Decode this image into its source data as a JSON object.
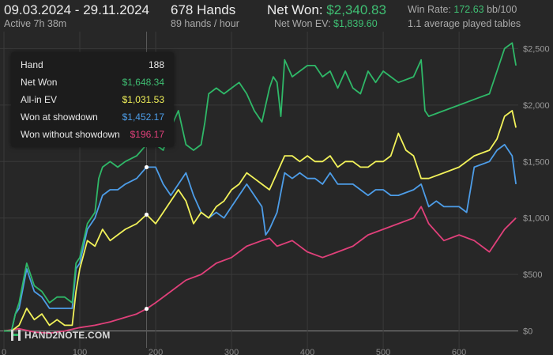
{
  "header": {
    "date_range": "09.03.2024 - 29.11.2024",
    "active": "Active 7h 38m",
    "hands": "678 Hands",
    "hands_rate": "89 hands / hour",
    "net_won_label": "Net Won:",
    "net_won_value": "$2,340.83",
    "net_won_ev_label": "Net Won  EV:",
    "net_won_ev_value": "$1,839.60",
    "win_rate_label": "Win Rate:",
    "win_rate_value": "172.63",
    "win_rate_unit": "bb/100",
    "avg_tables": "1.1 average played tables"
  },
  "tooltip": {
    "hand_label": "Hand",
    "hand_value": "188",
    "rows": [
      {
        "label": "Net Won",
        "value": "$1,648.34",
        "color": "#3fbf73"
      },
      {
        "label": "All-in EV",
        "value": "$1,031.53",
        "color": "#f2f25a"
      },
      {
        "label": "Won at showdown",
        "value": "$1,452.17",
        "color": "#4d9de8"
      },
      {
        "label": "Won without showdown",
        "value": "$196.17",
        "color": "#e0407a"
      }
    ]
  },
  "logo": {
    "text": "HAND2NOTE.COM"
  },
  "colors": {
    "background": "#272727",
    "grid": "#3a3a3a",
    "net_won": "#2fb868",
    "all_in_ev": "#f2f25a",
    "showdown": "#4d9de8",
    "non_showdown": "#e0407a"
  },
  "chart_data": {
    "type": "line",
    "xlim": [
      0,
      678
    ],
    "ylim": [
      -150,
      2650
    ],
    "x_ticks": [
      {
        "value": 0,
        "label": "0"
      },
      {
        "value": 100,
        "label": "100"
      },
      {
        "value": 200,
        "label": "200"
      },
      {
        "value": 300,
        "label": "300"
      },
      {
        "value": 400,
        "label": "400"
      },
      {
        "value": 500,
        "label": "500"
      },
      {
        "value": 600,
        "label": "600"
      }
    ],
    "y_ticks": [
      {
        "value": 0,
        "label": "$0"
      },
      {
        "value": 500,
        "label": "$500"
      },
      {
        "value": 1000,
        "label": "$1,000"
      },
      {
        "value": 1500,
        "label": "$1,500"
      },
      {
        "value": 2000,
        "label": "$2,000"
      },
      {
        "value": 2500,
        "label": "$2,500"
      }
    ],
    "grid": true,
    "marker_x": 188,
    "series": [
      {
        "name": "Net Won",
        "color_key": "net_won",
        "x": [
          0,
          10,
          15,
          20,
          30,
          40,
          50,
          60,
          70,
          80,
          90,
          95,
          100,
          105,
          110,
          120,
          125,
          130,
          140,
          150,
          160,
          175,
          188,
          200,
          210,
          220,
          230,
          240,
          250,
          260,
          265,
          270,
          280,
          290,
          300,
          310,
          320,
          330,
          340,
          350,
          355,
          360,
          365,
          370,
          380,
          390,
          400,
          410,
          420,
          430,
          440,
          450,
          460,
          470,
          480,
          490,
          500,
          510,
          520,
          540,
          550,
          555,
          560,
          580,
          600,
          620,
          640,
          650,
          660,
          670,
          675
        ],
        "y": [
          0,
          0,
          150,
          250,
          600,
          400,
          350,
          250,
          300,
          300,
          250,
          600,
          650,
          800,
          950,
          1050,
          1350,
          1450,
          1500,
          1450,
          1500,
          1550,
          1650,
          1650,
          1600,
          1800,
          1950,
          1650,
          1600,
          1650,
          1850,
          2100,
          2150,
          2100,
          2150,
          2200,
          2100,
          1950,
          1850,
          2150,
          2250,
          2200,
          1900,
          2400,
          2250,
          2300,
          2350,
          2350,
          2250,
          2300,
          2150,
          2300,
          2150,
          2100,
          2300,
          2200,
          2300,
          2250,
          2200,
          2250,
          2400,
          1950,
          1900,
          1950,
          2000,
          2050,
          2100,
          2300,
          2500,
          2550,
          2350
        ],
        "values": [
          0,
          0,
          150,
          250,
          600,
          400,
          350,
          250,
          300,
          300,
          250,
          600,
          650,
          800,
          950,
          1050,
          1350,
          1450,
          1500,
          1450,
          1500,
          1550,
          1650,
          1650,
          1600,
          1800,
          1950,
          1650,
          1600,
          1650,
          1850,
          2100,
          2150,
          2100,
          2150,
          2200,
          2100,
          1950,
          1850,
          2150,
          2250,
          2200,
          1900,
          2400,
          2250,
          2300,
          2350,
          2350,
          2250,
          2300,
          2150,
          2300,
          2150,
          2100,
          2300,
          2200,
          2300,
          2250,
          2200,
          2250,
          2400,
          1950,
          1900,
          1950,
          2000,
          2050,
          2100,
          2300,
          2500,
          2550,
          2350
        ]
      },
      {
        "name": "All-in EV",
        "color_key": "all_in_ev",
        "x": [
          0,
          10,
          20,
          30,
          40,
          50,
          60,
          70,
          80,
          90,
          95,
          100,
          110,
          120,
          130,
          140,
          150,
          160,
          175,
          188,
          200,
          210,
          220,
          230,
          240,
          250,
          260,
          270,
          280,
          290,
          300,
          310,
          320,
          330,
          340,
          350,
          360,
          370,
          380,
          390,
          400,
          410,
          420,
          430,
          440,
          450,
          460,
          470,
          480,
          490,
          500,
          510,
          520,
          530,
          540,
          550,
          560,
          580,
          600,
          620,
          640,
          650,
          660,
          670,
          675
        ],
        "y": [
          0,
          0,
          50,
          200,
          100,
          150,
          50,
          100,
          50,
          50,
          350,
          550,
          800,
          750,
          900,
          800,
          850,
          900,
          950,
          1030,
          950,
          1050,
          1150,
          1250,
          1150,
          950,
          1050,
          1000,
          1100,
          1150,
          1250,
          1300,
          1400,
          1350,
          1300,
          1250,
          1400,
          1550,
          1550,
          1500,
          1550,
          1500,
          1500,
          1550,
          1450,
          1500,
          1500,
          1450,
          1450,
          1500,
          1500,
          1550,
          1750,
          1600,
          1550,
          1350,
          1350,
          1400,
          1450,
          1550,
          1600,
          1700,
          1900,
          1950,
          1800
        ],
        "values": [
          0,
          0,
          50,
          200,
          100,
          150,
          50,
          100,
          50,
          50,
          350,
          550,
          800,
          750,
          900,
          800,
          850,
          900,
          950,
          1030,
          950,
          1050,
          1150,
          1250,
          1150,
          950,
          1050,
          1000,
          1100,
          1150,
          1250,
          1300,
          1400,
          1350,
          1300,
          1250,
          1400,
          1550,
          1550,
          1500,
          1550,
          1500,
          1500,
          1550,
          1450,
          1500,
          1500,
          1450,
          1450,
          1500,
          1500,
          1550,
          1750,
          1600,
          1550,
          1350,
          1350,
          1400,
          1450,
          1550,
          1600,
          1700,
          1900,
          1950,
          1800
        ]
      },
      {
        "name": "Won at showdown",
        "color_key": "showdown",
        "x": [
          0,
          10,
          15,
          20,
          30,
          40,
          50,
          60,
          70,
          80,
          90,
          95,
          100,
          105,
          110,
          120,
          130,
          140,
          150,
          160,
          175,
          188,
          200,
          210,
          220,
          230,
          240,
          250,
          260,
          270,
          280,
          290,
          300,
          310,
          320,
          330,
          340,
          345,
          350,
          360,
          370,
          380,
          390,
          400,
          410,
          420,
          430,
          440,
          450,
          460,
          470,
          480,
          490,
          500,
          510,
          520,
          540,
          550,
          560,
          570,
          580,
          600,
          610,
          620,
          640,
          650,
          660,
          670,
          675
        ],
        "y": [
          0,
          0,
          150,
          200,
          550,
          350,
          300,
          200,
          200,
          200,
          200,
          550,
          600,
          750,
          900,
          1000,
          1200,
          1250,
          1250,
          1300,
          1350,
          1450,
          1450,
          1300,
          1200,
          1300,
          1400,
          1200,
          1050,
          1000,
          1050,
          1000,
          1100,
          1200,
          1300,
          1200,
          1100,
          850,
          900,
          1050,
          1400,
          1350,
          1400,
          1350,
          1350,
          1300,
          1400,
          1300,
          1300,
          1300,
          1250,
          1200,
          1250,
          1250,
          1200,
          1200,
          1250,
          1300,
          1100,
          1150,
          1100,
          1100,
          1050,
          1450,
          1500,
          1600,
          1650,
          1550,
          1300
        ],
        "values": [
          0,
          0,
          150,
          200,
          550,
          350,
          300,
          200,
          200,
          200,
          200,
          550,
          600,
          750,
          900,
          1000,
          1200,
          1250,
          1250,
          1300,
          1350,
          1450,
          1450,
          1300,
          1200,
          1300,
          1400,
          1200,
          1050,
          1000,
          1050,
          1000,
          1100,
          1200,
          1300,
          1200,
          1100,
          850,
          900,
          1050,
          1400,
          1350,
          1400,
          1350,
          1350,
          1300,
          1400,
          1300,
          1300,
          1300,
          1250,
          1200,
          1250,
          1250,
          1200,
          1200,
          1250,
          1300,
          1100,
          1150,
          1100,
          1100,
          1050,
          1450,
          1500,
          1600,
          1650,
          1550,
          1300
        ]
      },
      {
        "name": "Won without showdown",
        "color_key": "non_showdown",
        "x": [
          0,
          20,
          40,
          60,
          80,
          100,
          120,
          140,
          160,
          175,
          188,
          200,
          220,
          240,
          260,
          280,
          300,
          320,
          340,
          350,
          360,
          380,
          400,
          420,
          440,
          460,
          480,
          500,
          520,
          540,
          550,
          560,
          580,
          600,
          620,
          640,
          660,
          675
        ],
        "y": [
          0,
          20,
          -10,
          -20,
          0,
          30,
          50,
          80,
          120,
          150,
          196,
          250,
          350,
          450,
          500,
          600,
          650,
          750,
          800,
          820,
          750,
          800,
          700,
          650,
          700,
          750,
          850,
          900,
          950,
          1000,
          1100,
          950,
          800,
          850,
          800,
          700,
          900,
          1000
        ],
        "values": [
          0,
          20,
          -10,
          -20,
          0,
          30,
          50,
          80,
          120,
          150,
          196,
          250,
          350,
          450,
          500,
          600,
          650,
          750,
          800,
          820,
          750,
          800,
          700,
          650,
          700,
          750,
          850,
          900,
          950,
          1000,
          1100,
          950,
          800,
          850,
          800,
          700,
          900,
          1000
        ]
      }
    ]
  }
}
